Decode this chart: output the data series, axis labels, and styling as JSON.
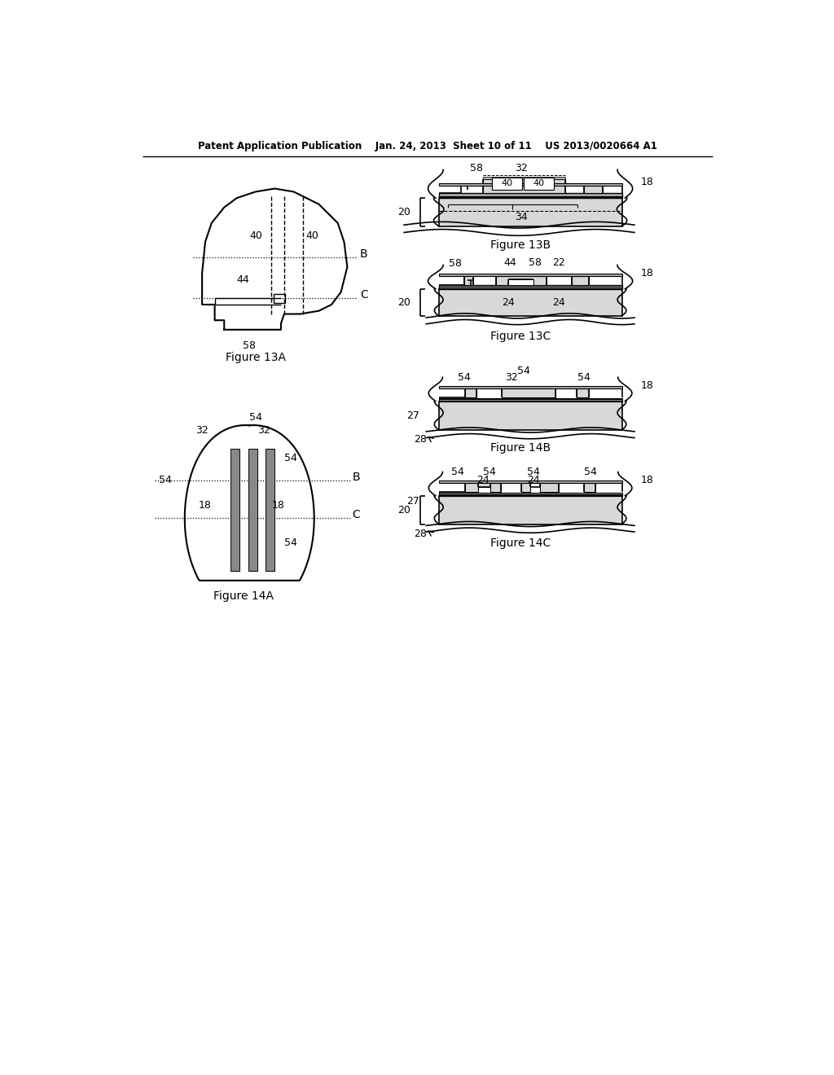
{
  "bg_color": "#ffffff",
  "header": "Patent Application Publication    Jan. 24, 2013  Sheet 10 of 11    US 2013/0020664 A1",
  "fig13a": "Figure 13A",
  "fig13b": "Figure 13B",
  "fig13c": "Figure 13C",
  "fig14a": "Figure 14A",
  "fig14b": "Figure 14B",
  "fig14c": "Figure 14C",
  "gray_light": "#d8d8d8",
  "gray_med": "#aaaaaa",
  "gray_dark": "#888888"
}
